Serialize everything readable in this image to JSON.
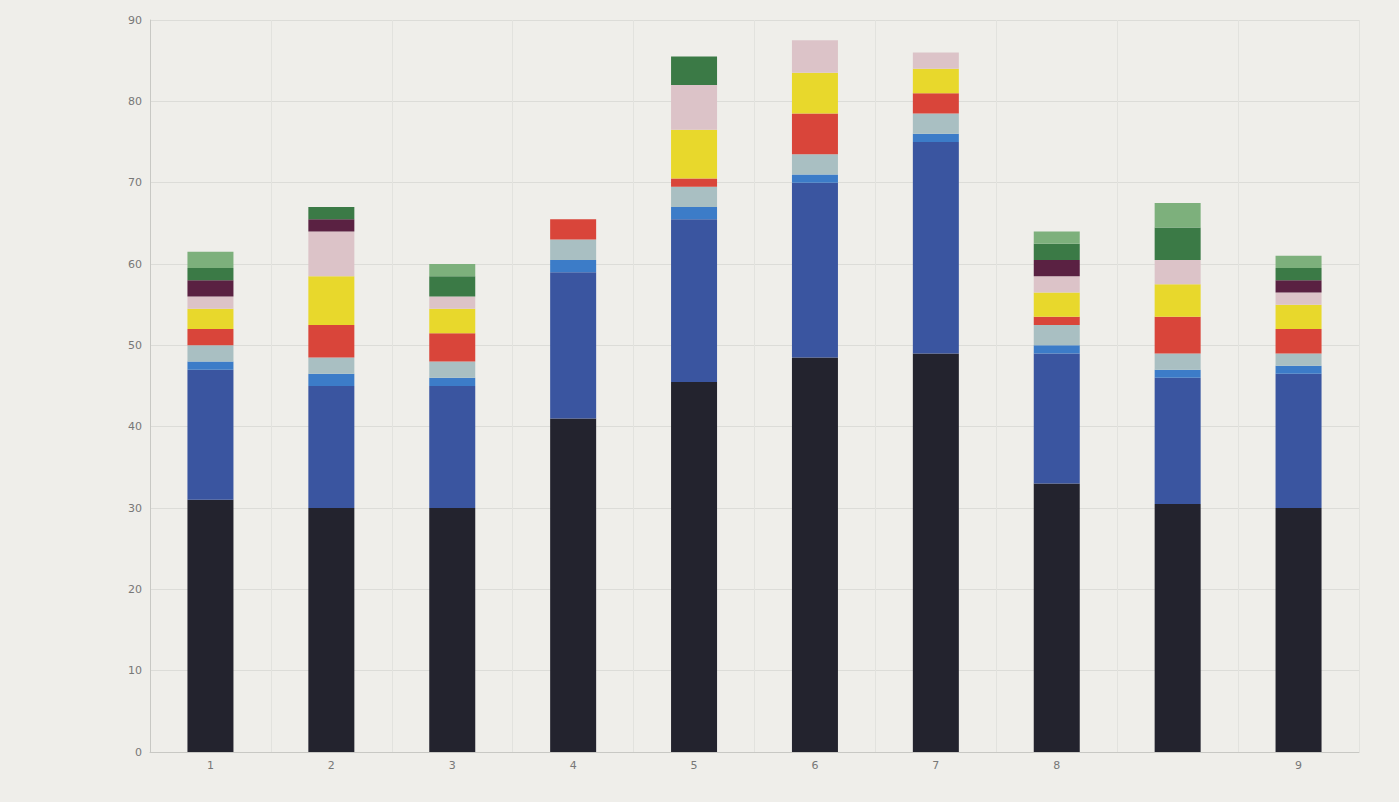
{
  "chart_data": {
    "type": "bar",
    "stacked": true,
    "grid": true,
    "categories": [
      "1",
      "2",
      "3",
      "4",
      "5",
      "6",
      "7",
      "8",
      null,
      "9"
    ],
    "ylim": [
      0,
      90
    ],
    "yticks": [
      0,
      10,
      20,
      30,
      40,
      50,
      60,
      70,
      80,
      90
    ],
    "series": [
      {
        "color": "#23232e",
        "values": [
          31,
          30,
          30,
          41,
          45.5,
          48.5,
          49,
          33,
          30.5,
          30
        ]
      },
      {
        "color": "#3a55a0",
        "values": [
          16,
          15,
          15,
          18,
          20,
          21.5,
          26,
          16,
          15.5,
          16.5
        ]
      },
      {
        "color": "#3c7cc8",
        "values": [
          1,
          1.5,
          1,
          1.5,
          1.5,
          1,
          1,
          1,
          1,
          1
        ]
      },
      {
        "color": "#a9bfc2",
        "values": [
          2,
          2,
          2,
          2.5,
          2.5,
          2.5,
          2.5,
          2.5,
          2,
          1.5
        ]
      },
      {
        "color": "#d9453a",
        "values": [
          2,
          4,
          3.5,
          2.5,
          1,
          5,
          2.5,
          1,
          4.5,
          3
        ]
      },
      {
        "color": "#e8d82c",
        "values": [
          2.5,
          6,
          3,
          0,
          6,
          5,
          3,
          3,
          4,
          3
        ]
      },
      {
        "color": "#dcc3c8",
        "values": [
          1.5,
          5.5,
          1.5,
          0,
          5.5,
          4,
          2,
          2,
          3,
          1.5
        ]
      },
      {
        "color": "#5a2142",
        "values": [
          2,
          1.5,
          0,
          0,
          0,
          0,
          0,
          2,
          0,
          1.5
        ]
      },
      {
        "color": "#3b7a46",
        "values": [
          1.5,
          1.5,
          2.5,
          0,
          3.5,
          0,
          0,
          2,
          4,
          1.5
        ]
      },
      {
        "color": "#7db07c",
        "values": [
          2,
          0,
          1.5,
          0,
          0,
          0,
          0,
          1.5,
          3,
          1.5
        ]
      }
    ]
  }
}
